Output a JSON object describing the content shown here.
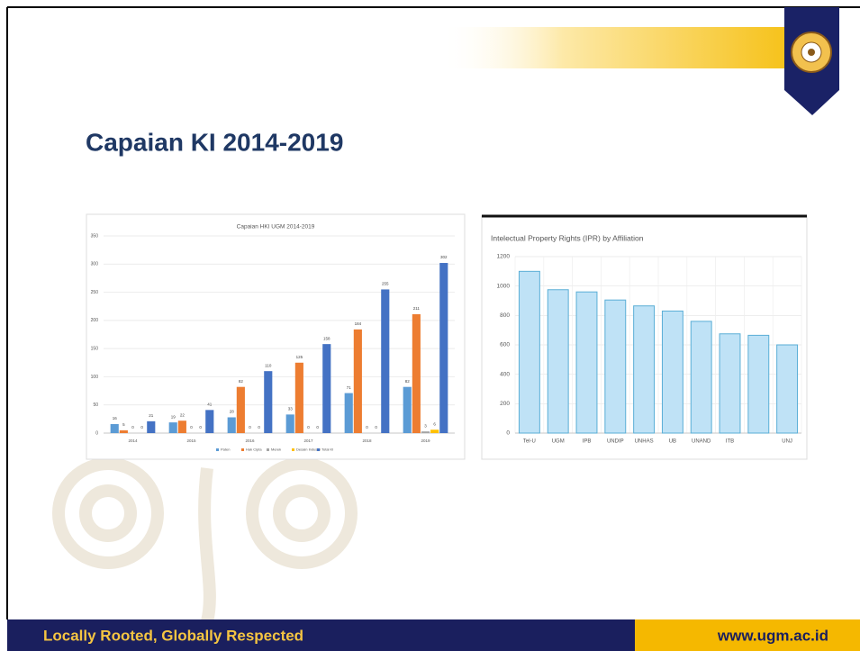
{
  "title": "Capaian KI 2014-2019",
  "footer": {
    "left": "Locally Rooted, Globally Respected",
    "right": "www.ugm.ac.id"
  },
  "chart_data": [
    {
      "type": "bar",
      "title": "Capaian HKI UGM 2014-2019",
      "categories": [
        "2014",
        "2015",
        "2016",
        "2017",
        "2018",
        "2019"
      ],
      "series": [
        {
          "name": "Paten",
          "color": "#5b9bd5",
          "values": [
            16,
            19,
            28,
            33,
            71,
            82
          ]
        },
        {
          "name": "Hak Cipta",
          "color": "#ed7d31",
          "values": [
            5,
            22,
            82,
            125,
            184,
            211
          ]
        },
        {
          "name": "Merek",
          "color": "#a5a5a5",
          "values": [
            0,
            0,
            0,
            0,
            0,
            3
          ]
        },
        {
          "name": "Desain Industri",
          "color": "#ffc000",
          "values": [
            0,
            0,
            0,
            0,
            0,
            6
          ]
        },
        {
          "name": "Total KI",
          "color": "#4472c4",
          "values": [
            21,
            41,
            110,
            158,
            255,
            302
          ]
        }
      ],
      "ylim": [
        0,
        350
      ],
      "yticks": [
        0,
        50,
        100,
        150,
        200,
        250,
        300,
        350
      ],
      "grid": true,
      "data_labels": true,
      "legend": "bottom"
    },
    {
      "type": "bar",
      "title": "Intelectual Property Rights (IPR) by Affiliation",
      "categories": [
        "Tel-U",
        "UGM",
        "IPB",
        "UNDIP",
        "UNHAS",
        "UB",
        "UNAND",
        "ITB",
        null,
        "UNJ"
      ],
      "values": [
        1100,
        975,
        960,
        905,
        865,
        830,
        760,
        675,
        665,
        600
      ],
      "color": "#bfe2f6",
      "ylim": [
        0,
        1200
      ],
      "yticks": [
        0,
        200,
        400,
        600,
        800,
        1000,
        1200
      ],
      "grid": true
    }
  ]
}
